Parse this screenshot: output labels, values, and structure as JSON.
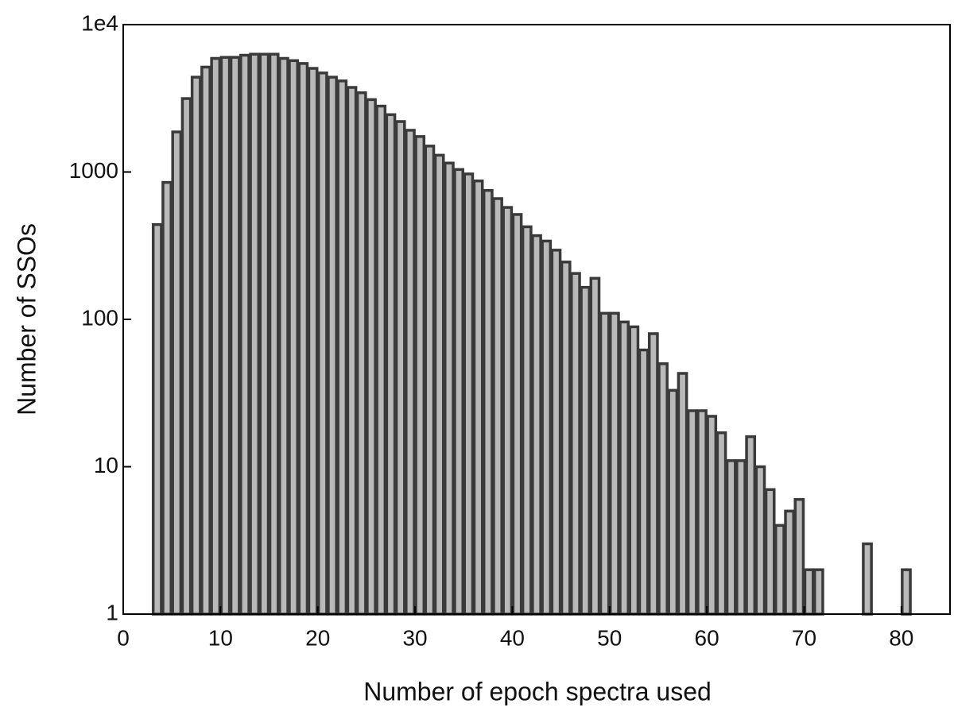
{
  "chart_data": {
    "type": "histogram",
    "x_label": "Number of epoch spectra used",
    "y_label": "Number of SSOs",
    "bins": [
      3,
      4,
      5,
      6,
      7,
      8,
      9,
      10,
      11,
      12,
      13,
      14,
      15,
      16,
      17,
      18,
      19,
      20,
      21,
      22,
      23,
      24,
      25,
      26,
      27,
      28,
      29,
      30,
      31,
      32,
      33,
      34,
      35,
      36,
      37,
      38,
      39,
      40,
      41,
      42,
      43,
      44,
      45,
      46,
      47,
      48,
      49,
      50,
      51,
      52,
      53,
      54,
      55,
      56,
      57,
      58,
      59,
      60,
      61,
      62,
      63,
      64,
      65,
      66,
      67,
      68,
      69,
      70,
      71,
      72,
      73,
      74,
      75,
      76,
      77,
      78,
      79,
      80,
      81
    ],
    "values": [
      440,
      850,
      1870,
      3150,
      4400,
      5150,
      5900,
      6000,
      6000,
      6200,
      6300,
      6300,
      6300,
      5900,
      5700,
      5450,
      5050,
      4700,
      4400,
      4150,
      3750,
      3450,
      3100,
      2800,
      2450,
      2200,
      1920,
      1740,
      1500,
      1300,
      1150,
      1040,
      970,
      870,
      750,
      660,
      575,
      515,
      425,
      370,
      340,
      295,
      245,
      205,
      165,
      190,
      110,
      110,
      96,
      89,
      62,
      80,
      50,
      33,
      43,
      24,
      24,
      22,
      17,
      11,
      11,
      16,
      10,
      7,
      4,
      5,
      6,
      2,
      2,
      0,
      0,
      0,
      0,
      3,
      0,
      0,
      0,
      2
    ],
    "color": "#b9b9b9",
    "edge_color": "#3a3a3a",
    "xlim": [
      0,
      85
    ],
    "xticks": [
      0,
      10,
      20,
      30,
      40,
      50,
      60,
      70,
      80
    ],
    "ylim": [
      1,
      10000
    ],
    "log_y": true,
    "yticks": [
      1,
      10,
      100,
      1000,
      {
        "value": 10000,
        "label": "1e4"
      }
    ]
  }
}
